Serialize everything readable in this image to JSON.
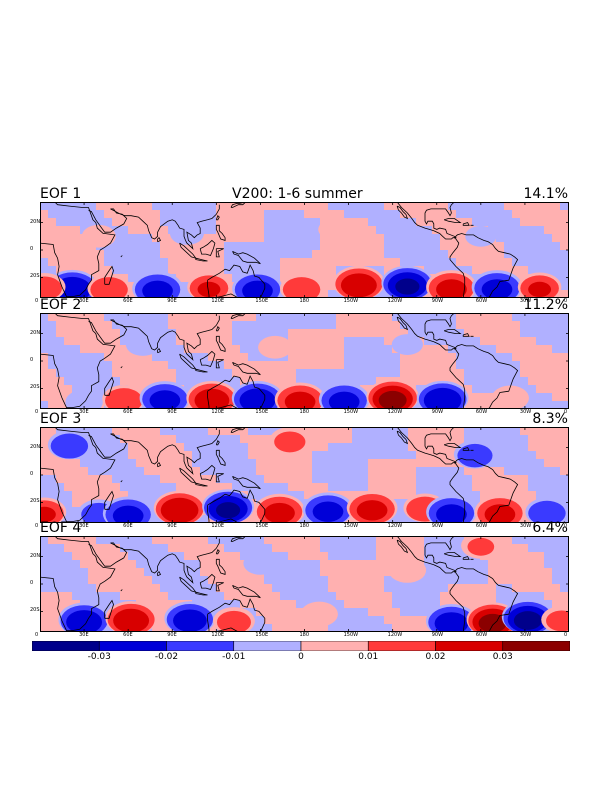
{
  "figure": {
    "title": "V200: 1-6 summer",
    "x_ticks": [
      "0",
      "30E",
      "60E",
      "90E",
      "120E",
      "150E",
      "180",
      "150W",
      "120W",
      "90W",
      "60W",
      "30W",
      "0"
    ],
    "y_ticks": [
      "20N",
      "0",
      "20S"
    ]
  },
  "panels": [
    {
      "label": "EOF 1",
      "variance": "14.1%",
      "anomalies": [
        {
          "lon": 22,
          "lat": -27,
          "v": -0.028
        },
        {
          "lon": 47,
          "lat": -28,
          "v": 0.018
        },
        {
          "lon": 80,
          "lat": -28,
          "v": -0.022
        },
        {
          "lon": 115,
          "lat": -27,
          "v": 0.02
        },
        {
          "lon": 148,
          "lat": -28,
          "v": -0.022
        },
        {
          "lon": 178,
          "lat": -28,
          "v": 0.018
        },
        {
          "lon": 217,
          "lat": -24,
          "v": 0.026
        },
        {
          "lon": 250,
          "lat": -24,
          "v": -0.03
        },
        {
          "lon": 280,
          "lat": -27,
          "v": 0.022
        },
        {
          "lon": 311,
          "lat": -27,
          "v": -0.022
        },
        {
          "lon": 340,
          "lat": -27,
          "v": 0.02
        },
        {
          "lon": 3,
          "lat": -27,
          "v": 0.015
        },
        {
          "lon": 40,
          "lat": 10,
          "v": 0.006
        },
        {
          "lon": 100,
          "lat": 12,
          "v": -0.006
        },
        {
          "lon": 200,
          "lat": 15,
          "v": 0.005
        },
        {
          "lon": 300,
          "lat": 10,
          "v": -0.005
        }
      ]
    },
    {
      "label": "EOF 2",
      "variance": "11.2%",
      "anomalies": [
        {
          "lon": 57,
          "lat": -28,
          "v": 0.018
        },
        {
          "lon": 85,
          "lat": -27,
          "v": -0.022
        },
        {
          "lon": 117,
          "lat": -27,
          "v": 0.025
        },
        {
          "lon": 148,
          "lat": -27,
          "v": -0.026
        },
        {
          "lon": 177,
          "lat": -28,
          "v": 0.022
        },
        {
          "lon": 207,
          "lat": -28,
          "v": -0.022
        },
        {
          "lon": 240,
          "lat": -26,
          "v": 0.032
        },
        {
          "lon": 274,
          "lat": -27,
          "v": -0.028
        },
        {
          "lon": 30,
          "lat": -30,
          "v": -0.008
        },
        {
          "lon": 320,
          "lat": -27,
          "v": 0.008
        },
        {
          "lon": 70,
          "lat": 12,
          "v": -0.006
        },
        {
          "lon": 160,
          "lat": 10,
          "v": 0.006
        },
        {
          "lon": 250,
          "lat": 12,
          "v": -0.005
        }
      ]
    },
    {
      "label": "EOF 3",
      "variance": "8.3%",
      "anomalies": [
        {
          "lon": 20,
          "lat": 22,
          "v": -0.018
        },
        {
          "lon": 3,
          "lat": -27,
          "v": 0.02
        },
        {
          "lon": 40,
          "lat": -28,
          "v": -0.015
        },
        {
          "lon": 60,
          "lat": -28,
          "v": -0.022
        },
        {
          "lon": 95,
          "lat": -24,
          "v": 0.028
        },
        {
          "lon": 128,
          "lat": -23,
          "v": -0.03
        },
        {
          "lon": 163,
          "lat": -26,
          "v": 0.022
        },
        {
          "lon": 196,
          "lat": -25,
          "v": -0.022
        },
        {
          "lon": 226,
          "lat": -24,
          "v": 0.022
        },
        {
          "lon": 262,
          "lat": -24,
          "v": 0.018
        },
        {
          "lon": 280,
          "lat": -27,
          "v": -0.022
        },
        {
          "lon": 313,
          "lat": -27,
          "v": 0.022
        },
        {
          "lon": 345,
          "lat": -27,
          "v": -0.018
        },
        {
          "lon": 296,
          "lat": 15,
          "v": -0.015
        },
        {
          "lon": 170,
          "lat": 25,
          "v": 0.012
        }
      ]
    },
    {
      "label": "EOF 4",
      "variance": "6.4%",
      "anomalies": [
        {
          "lon": 30,
          "lat": -26,
          "v": -0.026
        },
        {
          "lon": 62,
          "lat": -25,
          "v": 0.026
        },
        {
          "lon": 102,
          "lat": -25,
          "v": -0.024
        },
        {
          "lon": 132,
          "lat": -27,
          "v": 0.014
        },
        {
          "lon": 280,
          "lat": -27,
          "v": -0.024
        },
        {
          "lon": 308,
          "lat": -26,
          "v": 0.032
        },
        {
          "lon": 332,
          "lat": -24,
          "v": -0.032
        },
        {
          "lon": 355,
          "lat": -26,
          "v": 0.012
        },
        {
          "lon": 190,
          "lat": -22,
          "v": 0.008
        },
        {
          "lon": 150,
          "lat": 15,
          "v": -0.006
        },
        {
          "lon": 250,
          "lat": 10,
          "v": 0.008
        },
        {
          "lon": 300,
          "lat": 28,
          "v": 0.01
        }
      ]
    }
  ],
  "colorbar": {
    "levels": [
      -0.04,
      -0.03,
      -0.02,
      -0.01,
      0,
      0.01,
      0.02,
      0.03,
      0.04
    ],
    "colors": [
      "#00008b",
      "#0000d8",
      "#3a3aff",
      "#b0b0ff",
      "#ffb0b0",
      "#ff3a3a",
      "#d80000",
      "#8b0000"
    ],
    "labels": [
      "-0.03",
      "-0.02",
      "-0.01",
      "0",
      "0.01",
      "0.02",
      "0.03"
    ]
  }
}
